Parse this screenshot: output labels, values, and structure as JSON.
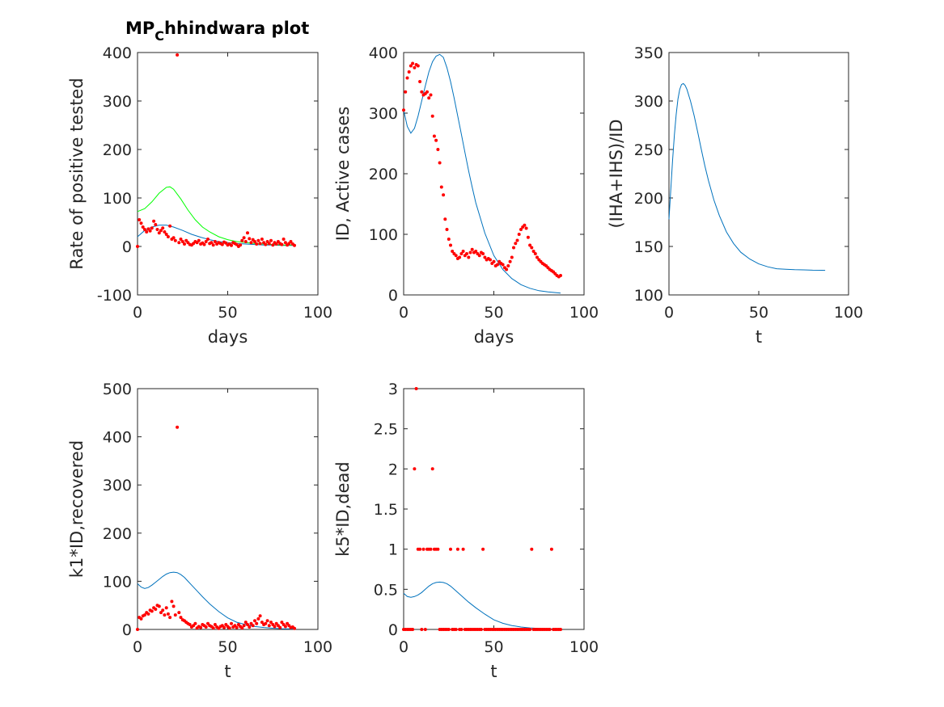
{
  "figure": {
    "title_main": "MP",
    "title_sub": "C",
    "title_rest": "hhindwara plot"
  },
  "colors": {
    "model": "#0072BD",
    "model_alt": "#00FF00",
    "observed": "#FF0000",
    "axes": "#262626"
  },
  "chart_data": [
    {
      "type": "line",
      "xlabel": "days",
      "ylabel": "Rate of positive tested",
      "xlim": [
        0,
        100
      ],
      "ylim": [
        -100,
        400
      ],
      "xticks": [
        0,
        50,
        100
      ],
      "yticks": [
        -100,
        0,
        100,
        200,
        300,
        400
      ],
      "series": [
        {
          "kind": "line",
          "color": "model",
          "x": [
            0,
            4,
            8,
            12,
            16,
            20,
            25,
            30,
            35,
            40,
            45,
            50,
            55,
            60,
            65,
            70,
            75,
            80,
            87
          ],
          "y": [
            20,
            33,
            40,
            44,
            44,
            40,
            33,
            25,
            19,
            14,
            10,
            8,
            6,
            5,
            4,
            3,
            3,
            2,
            2
          ]
        },
        {
          "kind": "line",
          "color": "model_alt",
          "x": [
            0,
            4,
            8,
            12,
            16,
            18,
            20,
            24,
            28,
            32,
            36,
            40,
            45,
            50,
            55,
            60,
            65,
            70,
            75,
            80,
            87
          ],
          "y": [
            72,
            78,
            92,
            110,
            122,
            123,
            118,
            98,
            75,
            55,
            40,
            30,
            20,
            14,
            10,
            8,
            6,
            5,
            4,
            3,
            3
          ]
        },
        {
          "kind": "scatter",
          "color": "observed",
          "x": [
            0,
            1,
            2,
            3,
            4,
            5,
            6,
            7,
            8,
            9,
            10,
            11,
            12,
            13,
            14,
            15,
            16,
            17,
            18,
            19,
            20,
            21,
            22,
            23,
            24,
            25,
            26,
            27,
            28,
            29,
            30,
            31,
            32,
            33,
            34,
            35,
            36,
            37,
            38,
            39,
            40,
            41,
            42,
            43,
            44,
            45,
            46,
            47,
            48,
            49,
            50,
            51,
            52,
            53,
            54,
            55,
            56,
            57,
            58,
            59,
            60,
            61,
            62,
            63,
            64,
            65,
            66,
            67,
            68,
            69,
            70,
            71,
            72,
            73,
            74,
            75,
            76,
            77,
            78,
            79,
            80,
            81,
            82,
            83,
            84,
            85,
            86,
            87
          ],
          "y": [
            0,
            55,
            48,
            40,
            35,
            30,
            36,
            32,
            38,
            52,
            45,
            35,
            28,
            33,
            38,
            30,
            25,
            20,
            42,
            15,
            18,
            12,
            395,
            8,
            15,
            10,
            5,
            12,
            8,
            4,
            3,
            6,
            10,
            8,
            12,
            5,
            7,
            4,
            10,
            15,
            6,
            8,
            3,
            10,
            5,
            8,
            6,
            4,
            9,
            7,
            3,
            5,
            2,
            8,
            6,
            4,
            0,
            3,
            12,
            18,
            10,
            28,
            16,
            8,
            14,
            10,
            5,
            12,
            6,
            15,
            8,
            4,
            10,
            6,
            12,
            3,
            8,
            5,
            10,
            6,
            4,
            15,
            8,
            3,
            6,
            10,
            5,
            2
          ]
        }
      ]
    },
    {
      "type": "line",
      "xlabel": "days",
      "ylabel": "ID, Active cases",
      "xlim": [
        0,
        100
      ],
      "ylim": [
        0,
        400
      ],
      "xticks": [
        0,
        50,
        100
      ],
      "yticks": [
        0,
        100,
        200,
        300,
        400
      ],
      "series": [
        {
          "kind": "line",
          "color": "model",
          "x": [
            0,
            2,
            4,
            6,
            8,
            10,
            12,
            14,
            16,
            18,
            20,
            22,
            24,
            26,
            28,
            30,
            32,
            34,
            36,
            38,
            40,
            45,
            50,
            55,
            60,
            65,
            70,
            75,
            80,
            87
          ],
          "y": [
            305,
            278,
            267,
            275,
            295,
            320,
            345,
            368,
            385,
            394,
            397,
            392,
            375,
            352,
            325,
            295,
            265,
            235,
            205,
            178,
            152,
            102,
            65,
            42,
            27,
            17,
            11,
            7,
            5,
            3
          ]
        },
        {
          "kind": "scatter",
          "color": "observed",
          "x": [
            0,
            1,
            2,
            3,
            4,
            5,
            6,
            7,
            8,
            9,
            10,
            11,
            12,
            13,
            14,
            15,
            16,
            17,
            18,
            19,
            20,
            21,
            22,
            23,
            24,
            25,
            26,
            27,
            28,
            29,
            30,
            31,
            32,
            33,
            34,
            35,
            36,
            37,
            38,
            39,
            40,
            41,
            42,
            43,
            44,
            45,
            46,
            47,
            48,
            49,
            50,
            51,
            52,
            53,
            54,
            55,
            56,
            57,
            58,
            59,
            60,
            61,
            62,
            63,
            64,
            65,
            66,
            67,
            68,
            69,
            70,
            71,
            72,
            73,
            74,
            75,
            76,
            77,
            78,
            79,
            80,
            81,
            82,
            83,
            84,
            85,
            86,
            87
          ],
          "y": [
            305,
            335,
            358,
            368,
            378,
            382,
            375,
            380,
            378,
            352,
            335,
            330,
            332,
            335,
            325,
            330,
            295,
            262,
            255,
            240,
            218,
            178,
            165,
            125,
            108,
            92,
            82,
            72,
            68,
            65,
            60,
            62,
            68,
            72,
            65,
            68,
            62,
            70,
            75,
            70,
            72,
            68,
            65,
            70,
            68,
            62,
            58,
            60,
            58,
            52,
            55,
            48,
            50,
            55,
            52,
            50,
            45,
            42,
            48,
            55,
            62,
            78,
            85,
            90,
            100,
            108,
            112,
            115,
            110,
            95,
            82,
            78,
            72,
            68,
            62,
            58,
            55,
            52,
            50,
            48,
            45,
            42,
            40,
            38,
            35,
            32,
            30,
            32
          ]
        }
      ]
    },
    {
      "type": "line",
      "xlabel": "t",
      "ylabel": "(IHA+IHS)/ID",
      "xlim": [
        0,
        100
      ],
      "ylim": [
        100,
        350
      ],
      "xticks": [
        0,
        50,
        100
      ],
      "yticks": [
        100,
        150,
        200,
        250,
        300,
        350
      ],
      "series": [
        {
          "kind": "line",
          "color": "model",
          "x": [
            0,
            1,
            2,
            3,
            4,
            5,
            6,
            7,
            8,
            9,
            10,
            12,
            14,
            16,
            18,
            20,
            22,
            25,
            28,
            32,
            36,
            40,
            45,
            50,
            55,
            60,
            65,
            70,
            75,
            80,
            87
          ],
          "y": [
            178,
            208,
            238,
            265,
            286,
            302,
            312,
            317,
            318,
            316,
            312,
            300,
            285,
            268,
            250,
            233,
            218,
            198,
            182,
            165,
            153,
            144,
            137,
            132,
            129,
            127,
            126.5,
            126,
            125.8,
            125.5,
            125.3
          ]
        }
      ]
    },
    {
      "type": "line",
      "xlabel": "t",
      "ylabel": "k1*ID,recovered",
      "xlim": [
        0,
        100
      ],
      "ylim": [
        0,
        500
      ],
      "xticks": [
        0,
        50,
        100
      ],
      "yticks": [
        0,
        100,
        200,
        300,
        400,
        500
      ],
      "series": [
        {
          "kind": "line",
          "color": "model",
          "x": [
            0,
            2,
            4,
            6,
            8,
            10,
            12,
            14,
            16,
            18,
            20,
            22,
            24,
            26,
            28,
            30,
            33,
            36,
            40,
            45,
            50,
            55,
            60,
            65,
            70,
            75,
            80,
            87
          ],
          "y": [
            95,
            88,
            85,
            87,
            92,
            98,
            104,
            110,
            115,
            118,
            119,
            118,
            114,
            108,
            100,
            92,
            80,
            68,
            53,
            37,
            24,
            15,
            10,
            6,
            4,
            2.5,
            1.5,
            1
          ]
        },
        {
          "kind": "scatter",
          "color": "observed",
          "x": [
            0,
            1,
            2,
            3,
            4,
            5,
            6,
            7,
            8,
            9,
            10,
            11,
            12,
            13,
            14,
            15,
            16,
            17,
            18,
            19,
            20,
            21,
            22,
            23,
            24,
            25,
            26,
            27,
            28,
            29,
            30,
            31,
            32,
            33,
            34,
            35,
            36,
            37,
            38,
            39,
            40,
            41,
            42,
            43,
            44,
            45,
            46,
            47,
            48,
            49,
            50,
            51,
            52,
            53,
            54,
            55,
            56,
            57,
            58,
            59,
            60,
            61,
            62,
            63,
            64,
            65,
            66,
            67,
            68,
            69,
            70,
            71,
            72,
            73,
            74,
            75,
            76,
            77,
            78,
            79,
            80,
            81,
            82,
            83,
            84,
            85,
            86,
            87
          ],
          "y": [
            0,
            25,
            22,
            28,
            30,
            35,
            32,
            40,
            38,
            45,
            42,
            50,
            48,
            35,
            40,
            30,
            45,
            32,
            25,
            58,
            48,
            30,
            420,
            35,
            25,
            20,
            18,
            15,
            12,
            10,
            5,
            8,
            12,
            3,
            6,
            4,
            10,
            8,
            5,
            12,
            8,
            6,
            3,
            10,
            5,
            2,
            6,
            8,
            4,
            10,
            6,
            3,
            12,
            5,
            8,
            4,
            10,
            6,
            3,
            8,
            15,
            10,
            5,
            12,
            8,
            18,
            12,
            22,
            28,
            15,
            10,
            12,
            18,
            8,
            15,
            10,
            6,
            12,
            8,
            4,
            15,
            10,
            6,
            12,
            8,
            4,
            5,
            2
          ]
        }
      ]
    },
    {
      "type": "line",
      "xlabel": "t",
      "ylabel": "k5*ID,dead",
      "xlim": [
        0,
        100
      ],
      "ylim": [
        0,
        3
      ],
      "xticks": [
        0,
        50,
        100
      ],
      "yticks": [
        0,
        0.5,
        1,
        1.5,
        2,
        2.5,
        3
      ],
      "ytickLabels": [
        "0",
        "0.5",
        "1",
        "1.5",
        "2",
        "2.5",
        "3"
      ],
      "series": [
        {
          "kind": "line",
          "color": "model",
          "x": [
            0,
            2,
            4,
            6,
            8,
            10,
            12,
            14,
            16,
            18,
            20,
            22,
            24,
            26,
            28,
            30,
            33,
            36,
            40,
            45,
            50,
            55,
            60,
            65,
            70,
            75,
            80,
            87
          ],
          "y": [
            0.45,
            0.41,
            0.4,
            0.41,
            0.43,
            0.46,
            0.5,
            0.54,
            0.57,
            0.585,
            0.59,
            0.585,
            0.57,
            0.54,
            0.5,
            0.46,
            0.4,
            0.34,
            0.27,
            0.19,
            0.12,
            0.077,
            0.048,
            0.03,
            0.019,
            0.012,
            0.008,
            0.005
          ]
        },
        {
          "kind": "scatter",
          "color": "observed",
          "x": [
            0,
            1,
            2,
            3,
            4,
            5,
            6,
            7,
            8,
            9,
            10,
            11,
            12,
            13,
            14,
            15,
            16,
            17,
            18,
            19,
            20,
            21,
            22,
            23,
            24,
            25,
            26,
            27,
            28,
            29,
            30,
            31,
            32,
            33,
            34,
            35,
            36,
            37,
            38,
            39,
            40,
            41,
            42,
            43,
            44,
            45,
            46,
            47,
            48,
            49,
            50,
            51,
            52,
            53,
            54,
            55,
            56,
            57,
            58,
            59,
            60,
            61,
            62,
            63,
            64,
            65,
            66,
            67,
            68,
            69,
            70,
            71,
            72,
            73,
            74,
            75,
            76,
            77,
            78,
            79,
            80,
            81,
            82,
            83,
            84,
            85,
            86,
            87
          ],
          "y": [
            0,
            0,
            0,
            0,
            0,
            0,
            2,
            3,
            1,
            1,
            0,
            1,
            0,
            1,
            1,
            1,
            2,
            1,
            1,
            1,
            0,
            0,
            0,
            0,
            0,
            0,
            1,
            0,
            0,
            0,
            1,
            0,
            0,
            1,
            0,
            0,
            0,
            0,
            0,
            0,
            0,
            0,
            0,
            0,
            1,
            0,
            0,
            0,
            0,
            0,
            0,
            0,
            0,
            0,
            0,
            0,
            0,
            0,
            0,
            0,
            0,
            0,
            0,
            0,
            0,
            0,
            0,
            0,
            0,
            0,
            0,
            1,
            0,
            0,
            0,
            0,
            0,
            0,
            0,
            0,
            0,
            0,
            1,
            0,
            0,
            0,
            0,
            0
          ]
        }
      ]
    }
  ]
}
